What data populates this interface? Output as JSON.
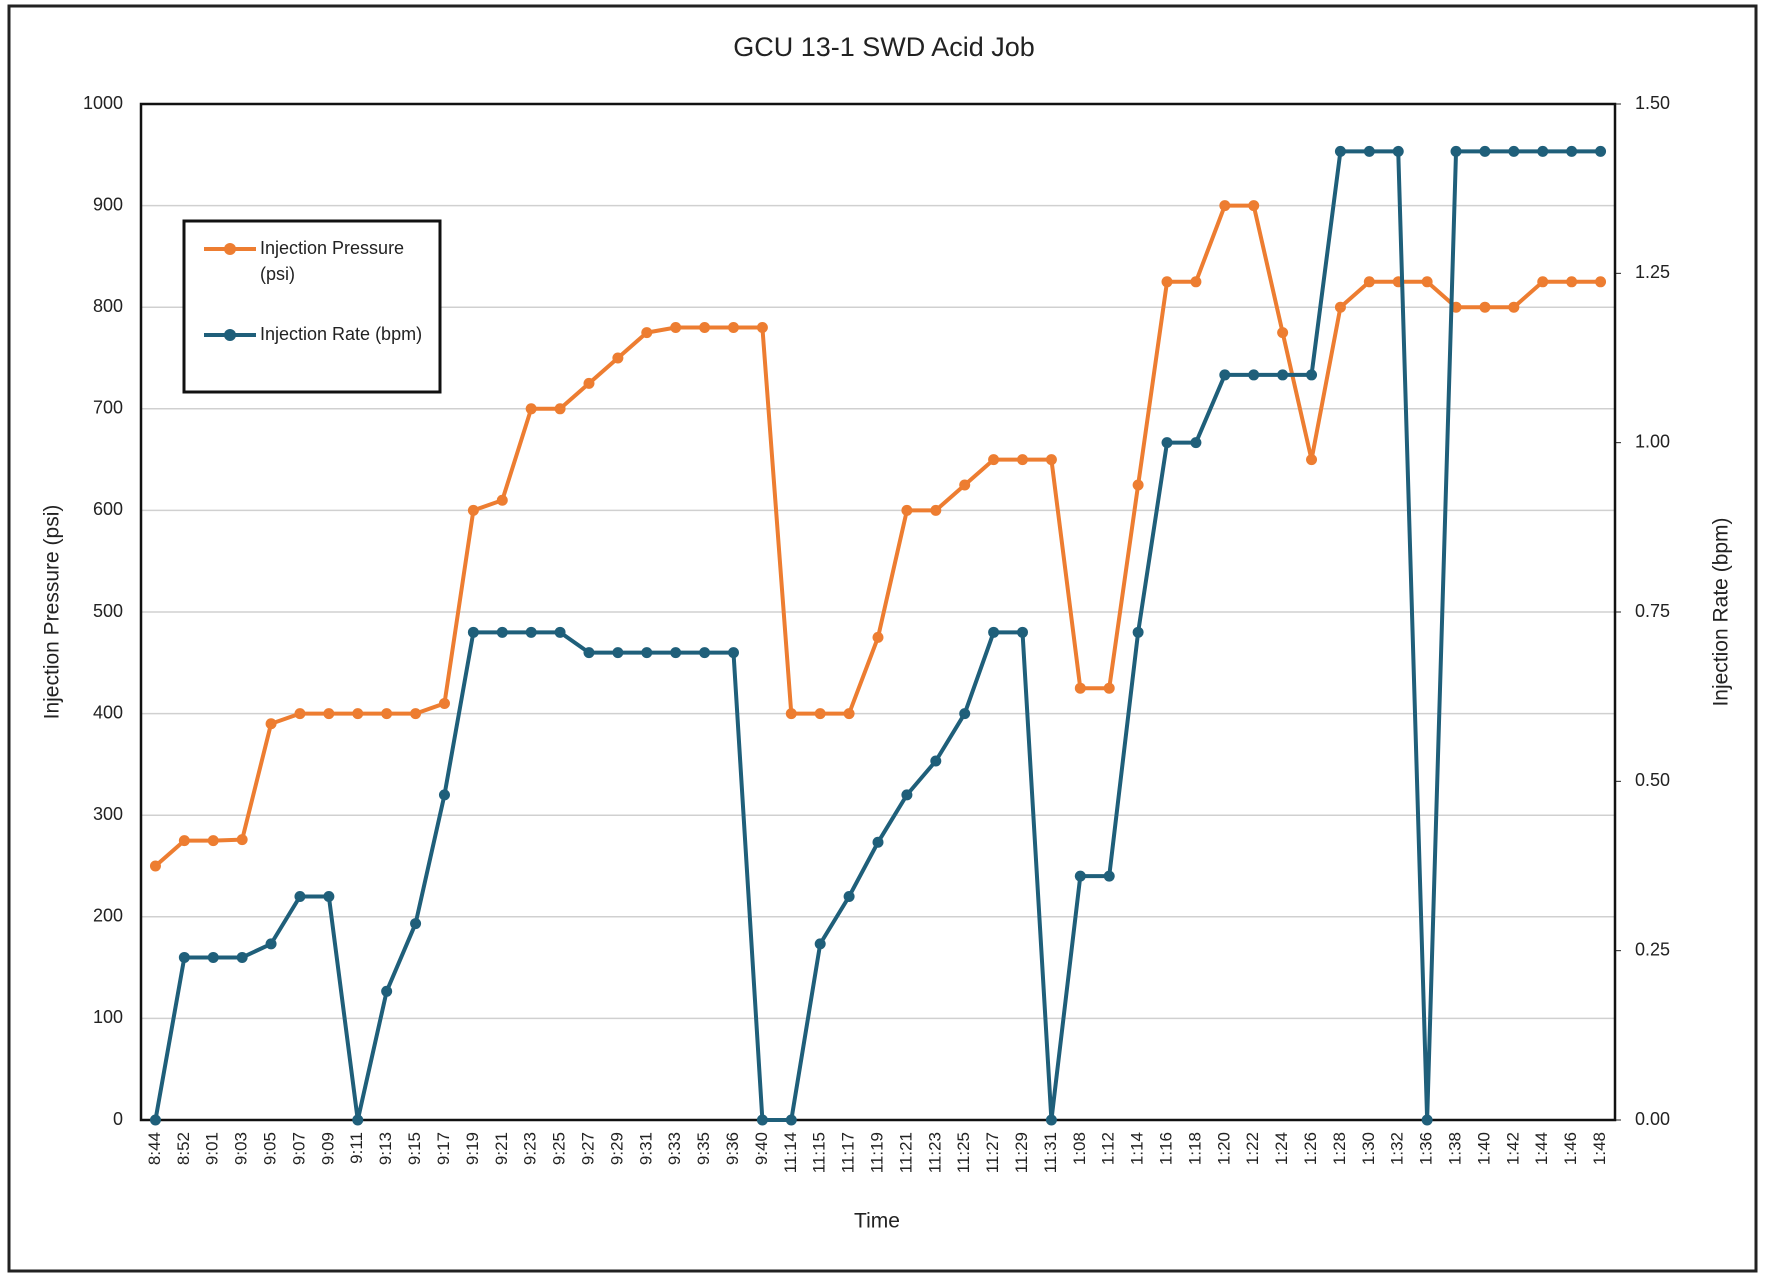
{
  "chart_data": {
    "type": "line",
    "title": "GCU 13-1 SWD Acid Job",
    "x_label": "Time",
    "y_label": "Injection Pressure (psi)",
    "y2_label": "Injection Rate (bpm)",
    "categories": [
      "8:44",
      "8:52",
      "9:01",
      "9:03",
      "9:05",
      "9:07",
      "9:09",
      "9:11",
      "9:13",
      "9:15",
      "9:17",
      "9:19",
      "9:21",
      "9:23",
      "9:25",
      "9:27",
      "9:29",
      "9:31",
      "9:33",
      "9:35",
      "9:36",
      "9:40",
      "11:14",
      "11:15",
      "11:17",
      "11:19",
      "11:21",
      "11:23",
      "11:25",
      "11:27",
      "11:29",
      "11:31",
      "1:08",
      "1:12",
      "1:14",
      "1:16",
      "1:18",
      "1:20",
      "1:22",
      "1:24",
      "1:26",
      "1:28",
      "1:30",
      "1:32",
      "1:36",
      "1:38",
      "1:40",
      "1:42",
      "1:44",
      "1:46",
      "1:48"
    ],
    "series": [
      {
        "name": "Injection Pressure (psi)",
        "color": "#ed7d31",
        "axis": "y",
        "values": [
          250,
          275,
          275,
          276,
          390,
          400,
          400,
          400,
          400,
          400,
          410,
          600,
          610,
          700,
          700,
          725,
          750,
          775,
          780,
          780,
          780,
          780,
          400,
          400,
          400,
          475,
          600,
          600,
          625,
          650,
          650,
          650,
          425,
          425,
          625,
          825,
          825,
          900,
          900,
          775,
          650,
          800,
          825,
          825,
          825,
          800,
          800,
          800,
          825,
          825,
          825
        ]
      },
      {
        "name": "Injection Rate (bpm)",
        "color": "#1f5f7a",
        "axis": "y2",
        "values": [
          0,
          0.24,
          0.24,
          0.24,
          0.26,
          0.33,
          0.33,
          0,
          0.19,
          0.29,
          0.48,
          0.72,
          0.72,
          0.72,
          0.72,
          0.69,
          0.69,
          0.69,
          0.69,
          0.69,
          0.69,
          0,
          0,
          0.26,
          0.33,
          0.41,
          0.48,
          0.53,
          0.6,
          0.72,
          0.72,
          0,
          0.36,
          0.36,
          0.72,
          1.0,
          1.0,
          1.1,
          1.1,
          1.1,
          1.1,
          1.43,
          1.43,
          1.43,
          0,
          1.43,
          1.43,
          1.43,
          1.43,
          1.43,
          1.43
        ]
      }
    ],
    "ylim": [
      0,
      1000
    ],
    "yticks": [
      0,
      100,
      200,
      300,
      400,
      500,
      600,
      700,
      800,
      900,
      1000
    ],
    "y2lim": [
      0,
      1.5
    ],
    "y2ticks": [
      {
        "value": 0,
        "label": "0.00"
      },
      {
        "value": 0.25,
        "label": "0.25"
      },
      {
        "value": 0.5,
        "label": "0.50"
      },
      {
        "value": 0.75,
        "label": "0.75"
      },
      {
        "value": 1,
        "label": "1.00"
      },
      {
        "value": 1.25,
        "label": "1.25"
      },
      {
        "value": 1.5,
        "label": "1.50"
      }
    ],
    "grid": true,
    "legend": "upper left"
  }
}
